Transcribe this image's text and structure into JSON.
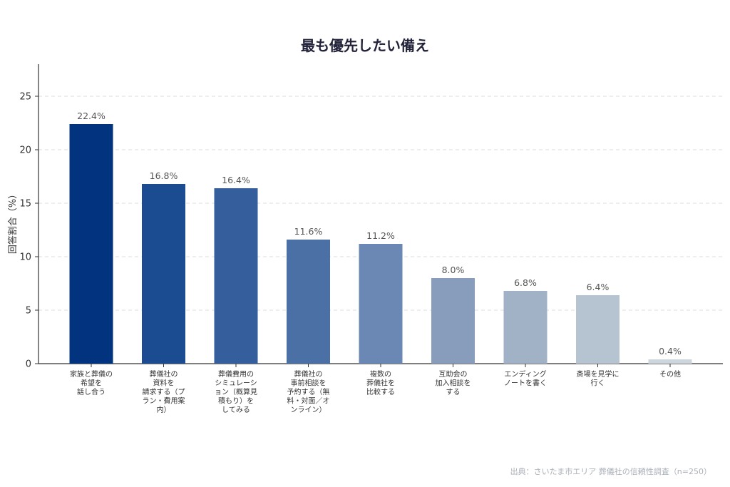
{
  "source_note": "出典：さいたま市エリア 葬儀社の信頼性調査（n=250）",
  "chart_data": {
    "type": "bar",
    "title": "最も優先したい備え",
    "xlabel": "",
    "ylabel": "回答割合（%）",
    "ylim": [
      0,
      28
    ],
    "yticks": [
      0,
      5,
      10,
      15,
      20,
      25
    ],
    "grid": true,
    "categories": [
      [
        "家族と葬儀の",
        "希望を",
        "話し合う"
      ],
      [
        "葬儀社の",
        "資料を",
        "請求する（プ",
        "ラン・費用案",
        "内）"
      ],
      [
        "葬儀費用の",
        "シミュレーシ",
        "ョン（概算見",
        "積もり）を",
        "してみる"
      ],
      [
        "葬儀社の",
        "事前相談を",
        "予約する（無",
        "料・対面／オ",
        "ンライン）"
      ],
      [
        "複数の",
        "葬儀社を",
        "比較する"
      ],
      [
        "互助会の",
        "加入相談を",
        "する"
      ],
      [
        "エンディング",
        "ノートを書く"
      ],
      [
        "斎場を見学に",
        "行く"
      ],
      [
        "その他"
      ]
    ],
    "values": [
      22.4,
      16.8,
      16.4,
      11.6,
      11.2,
      8.0,
      6.8,
      6.4,
      0.4
    ],
    "value_labels": [
      "22.4%",
      "16.8%",
      "16.4%",
      "11.6%",
      "11.2%",
      "8.0%",
      "6.8%",
      "6.4%",
      "0.4%"
    ],
    "colors": [
      "#02337f",
      "#1b4b91",
      "#355f9c",
      "#4b70a6",
      "#6a88b3",
      "#879dbb",
      "#a1b1c6",
      "#b6c3d0",
      "#cdd5dd"
    ]
  }
}
